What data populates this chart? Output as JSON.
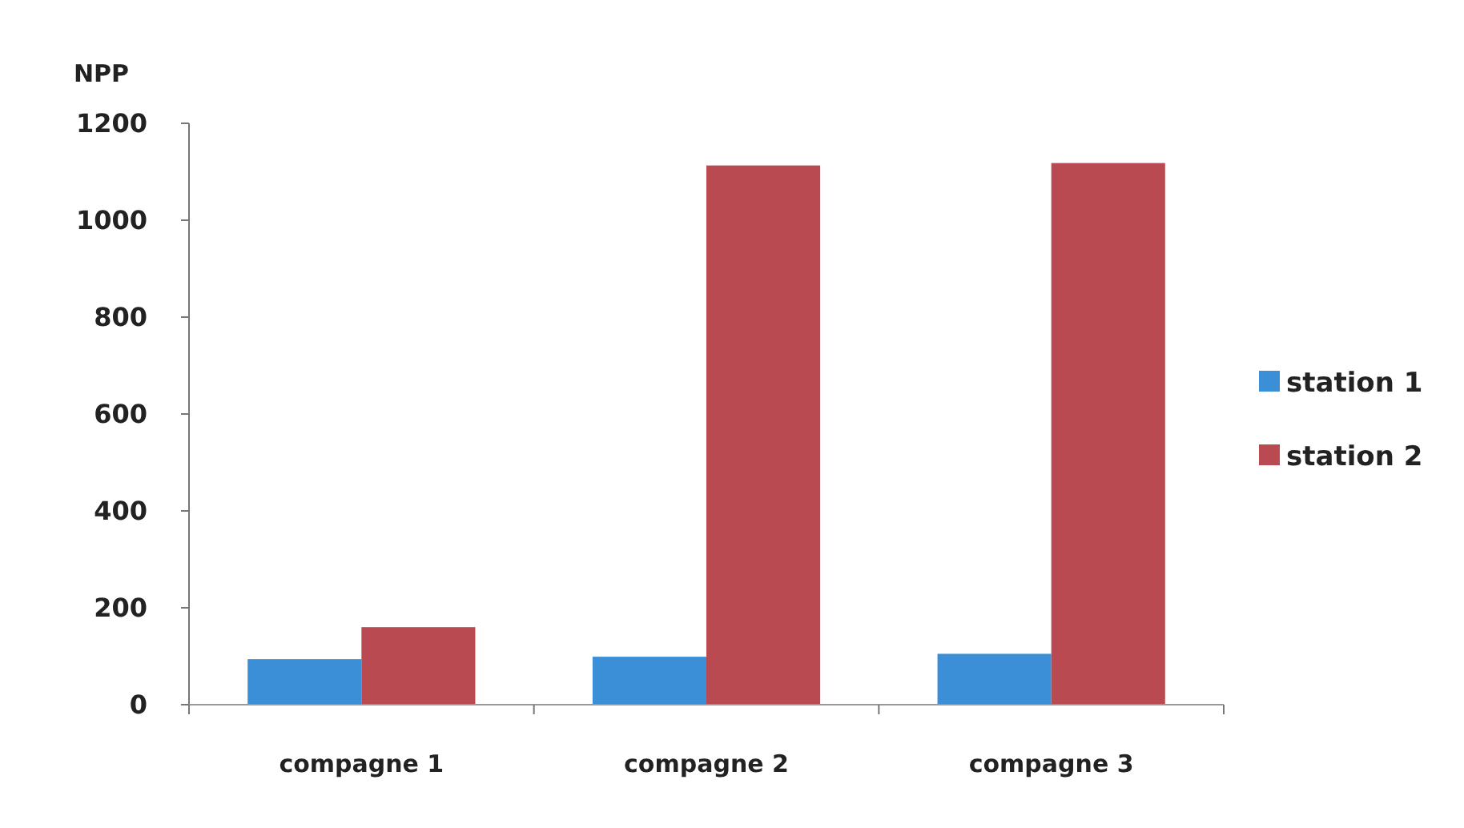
{
  "chart_data": {
    "type": "bar",
    "ylabel": "NPP",
    "categories": [
      "compagne 1",
      "compagne 2",
      "compagne 3"
    ],
    "series": [
      {
        "name": "station 1",
        "color": "#3a8fd6",
        "values": [
          94,
          99,
          105
        ]
      },
      {
        "name": "station 2",
        "color": "#b94a52",
        "values": [
          160,
          1113,
          1118
        ]
      }
    ],
    "ylim": [
      0,
      1200
    ],
    "yticks": [
      0,
      200,
      400,
      600,
      800,
      1000,
      1200
    ],
    "legend": "right"
  }
}
